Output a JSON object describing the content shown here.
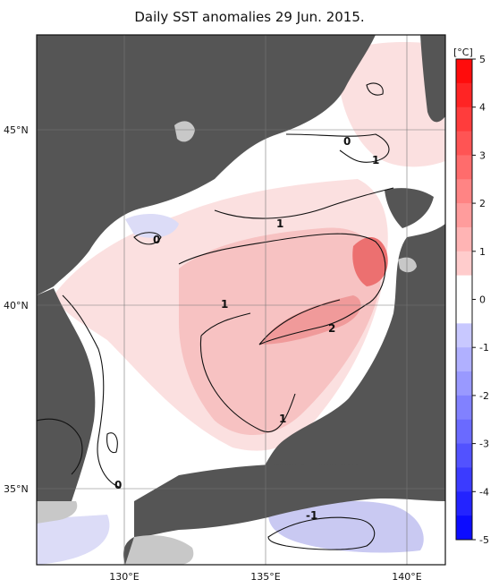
{
  "title": "Daily SST anomalies 29 Jun. 2015.",
  "unit_label": "[°C]",
  "lat_labels": [
    "45°N",
    "40°N",
    "35°N"
  ],
  "lon_labels": [
    "130°E",
    "135°E",
    "140°E"
  ],
  "colorbar_ticks": [
    "5",
    "4",
    "3",
    "2",
    "1",
    "0",
    "-1",
    "-2",
    "-3",
    "-4",
    "-5"
  ],
  "contour_labels": [
    "0",
    "1",
    "1",
    "0",
    "1",
    "2",
    "1",
    "0",
    "-1",
    "1"
  ],
  "colors": {
    "land": "#555555",
    "ice_or_nodata": "#c8c8c8",
    "warm_max": "#ff0000",
    "cold_max": "#0000ff"
  }
}
